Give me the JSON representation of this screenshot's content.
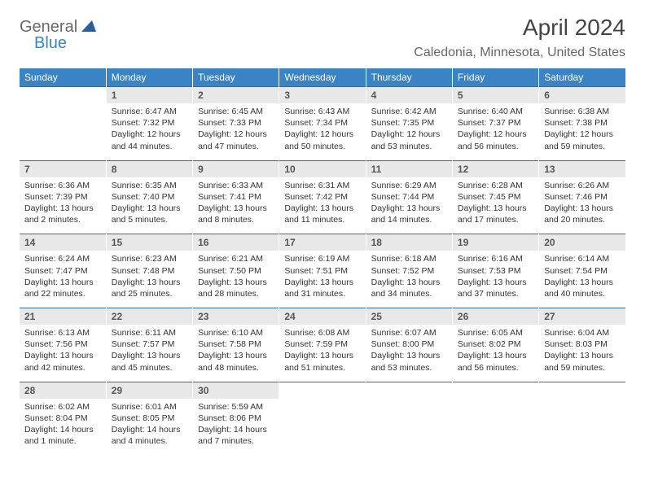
{
  "logo": {
    "line1": "General",
    "line2": "Blue"
  },
  "title": "April 2024",
  "location": "Caledonia, Minnesota, United States",
  "colors": {
    "header_bg": "#3a84c5",
    "daynum_bg": "#e8e8e8",
    "border": "#3a6a9a",
    "text": "#333333",
    "title": "#444444"
  },
  "weekdays": [
    "Sunday",
    "Monday",
    "Tuesday",
    "Wednesday",
    "Thursday",
    "Friday",
    "Saturday"
  ],
  "weeks": [
    {
      "nums": [
        "",
        "1",
        "2",
        "3",
        "4",
        "5",
        "6"
      ],
      "cells": [
        null,
        {
          "sr": "Sunrise: 6:47 AM",
          "ss": "Sunset: 7:32 PM",
          "d1": "Daylight: 12 hours",
          "d2": "and 44 minutes."
        },
        {
          "sr": "Sunrise: 6:45 AM",
          "ss": "Sunset: 7:33 PM",
          "d1": "Daylight: 12 hours",
          "d2": "and 47 minutes."
        },
        {
          "sr": "Sunrise: 6:43 AM",
          "ss": "Sunset: 7:34 PM",
          "d1": "Daylight: 12 hours",
          "d2": "and 50 minutes."
        },
        {
          "sr": "Sunrise: 6:42 AM",
          "ss": "Sunset: 7:35 PM",
          "d1": "Daylight: 12 hours",
          "d2": "and 53 minutes."
        },
        {
          "sr": "Sunrise: 6:40 AM",
          "ss": "Sunset: 7:37 PM",
          "d1": "Daylight: 12 hours",
          "d2": "and 56 minutes."
        },
        {
          "sr": "Sunrise: 6:38 AM",
          "ss": "Sunset: 7:38 PM",
          "d1": "Daylight: 12 hours",
          "d2": "and 59 minutes."
        }
      ]
    },
    {
      "nums": [
        "7",
        "8",
        "9",
        "10",
        "11",
        "12",
        "13"
      ],
      "cells": [
        {
          "sr": "Sunrise: 6:36 AM",
          "ss": "Sunset: 7:39 PM",
          "d1": "Daylight: 13 hours",
          "d2": "and 2 minutes."
        },
        {
          "sr": "Sunrise: 6:35 AM",
          "ss": "Sunset: 7:40 PM",
          "d1": "Daylight: 13 hours",
          "d2": "and 5 minutes."
        },
        {
          "sr": "Sunrise: 6:33 AM",
          "ss": "Sunset: 7:41 PM",
          "d1": "Daylight: 13 hours",
          "d2": "and 8 minutes."
        },
        {
          "sr": "Sunrise: 6:31 AM",
          "ss": "Sunset: 7:42 PM",
          "d1": "Daylight: 13 hours",
          "d2": "and 11 minutes."
        },
        {
          "sr": "Sunrise: 6:29 AM",
          "ss": "Sunset: 7:44 PM",
          "d1": "Daylight: 13 hours",
          "d2": "and 14 minutes."
        },
        {
          "sr": "Sunrise: 6:28 AM",
          "ss": "Sunset: 7:45 PM",
          "d1": "Daylight: 13 hours",
          "d2": "and 17 minutes."
        },
        {
          "sr": "Sunrise: 6:26 AM",
          "ss": "Sunset: 7:46 PM",
          "d1": "Daylight: 13 hours",
          "d2": "and 20 minutes."
        }
      ]
    },
    {
      "nums": [
        "14",
        "15",
        "16",
        "17",
        "18",
        "19",
        "20"
      ],
      "cells": [
        {
          "sr": "Sunrise: 6:24 AM",
          "ss": "Sunset: 7:47 PM",
          "d1": "Daylight: 13 hours",
          "d2": "and 22 minutes."
        },
        {
          "sr": "Sunrise: 6:23 AM",
          "ss": "Sunset: 7:48 PM",
          "d1": "Daylight: 13 hours",
          "d2": "and 25 minutes."
        },
        {
          "sr": "Sunrise: 6:21 AM",
          "ss": "Sunset: 7:50 PM",
          "d1": "Daylight: 13 hours",
          "d2": "and 28 minutes."
        },
        {
          "sr": "Sunrise: 6:19 AM",
          "ss": "Sunset: 7:51 PM",
          "d1": "Daylight: 13 hours",
          "d2": "and 31 minutes."
        },
        {
          "sr": "Sunrise: 6:18 AM",
          "ss": "Sunset: 7:52 PM",
          "d1": "Daylight: 13 hours",
          "d2": "and 34 minutes."
        },
        {
          "sr": "Sunrise: 6:16 AM",
          "ss": "Sunset: 7:53 PM",
          "d1": "Daylight: 13 hours",
          "d2": "and 37 minutes."
        },
        {
          "sr": "Sunrise: 6:14 AM",
          "ss": "Sunset: 7:54 PM",
          "d1": "Daylight: 13 hours",
          "d2": "and 40 minutes."
        }
      ]
    },
    {
      "nums": [
        "21",
        "22",
        "23",
        "24",
        "25",
        "26",
        "27"
      ],
      "cells": [
        {
          "sr": "Sunrise: 6:13 AM",
          "ss": "Sunset: 7:56 PM",
          "d1": "Daylight: 13 hours",
          "d2": "and 42 minutes."
        },
        {
          "sr": "Sunrise: 6:11 AM",
          "ss": "Sunset: 7:57 PM",
          "d1": "Daylight: 13 hours",
          "d2": "and 45 minutes."
        },
        {
          "sr": "Sunrise: 6:10 AM",
          "ss": "Sunset: 7:58 PM",
          "d1": "Daylight: 13 hours",
          "d2": "and 48 minutes."
        },
        {
          "sr": "Sunrise: 6:08 AM",
          "ss": "Sunset: 7:59 PM",
          "d1": "Daylight: 13 hours",
          "d2": "and 51 minutes."
        },
        {
          "sr": "Sunrise: 6:07 AM",
          "ss": "Sunset: 8:00 PM",
          "d1": "Daylight: 13 hours",
          "d2": "and 53 minutes."
        },
        {
          "sr": "Sunrise: 6:05 AM",
          "ss": "Sunset: 8:02 PM",
          "d1": "Daylight: 13 hours",
          "d2": "and 56 minutes."
        },
        {
          "sr": "Sunrise: 6:04 AM",
          "ss": "Sunset: 8:03 PM",
          "d1": "Daylight: 13 hours",
          "d2": "and 59 minutes."
        }
      ]
    },
    {
      "nums": [
        "28",
        "29",
        "30",
        "",
        "",
        "",
        ""
      ],
      "cells": [
        {
          "sr": "Sunrise: 6:02 AM",
          "ss": "Sunset: 8:04 PM",
          "d1": "Daylight: 14 hours",
          "d2": "and 1 minute."
        },
        {
          "sr": "Sunrise: 6:01 AM",
          "ss": "Sunset: 8:05 PM",
          "d1": "Daylight: 14 hours",
          "d2": "and 4 minutes."
        },
        {
          "sr": "Sunrise: 5:59 AM",
          "ss": "Sunset: 8:06 PM",
          "d1": "Daylight: 14 hours",
          "d2": "and 7 minutes."
        },
        null,
        null,
        null,
        null
      ]
    }
  ]
}
